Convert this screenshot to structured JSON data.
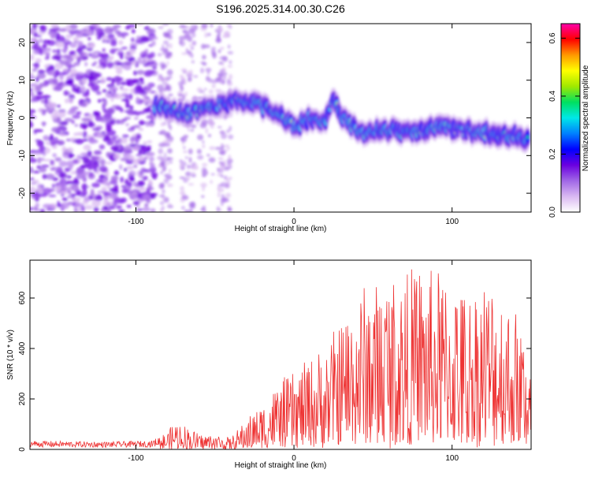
{
  "title": "S196.2025.314.00.30.C26",
  "chart_data": [
    {
      "type": "heatmap",
      "title": "",
      "xlabel": "Height of straight line (km)",
      "ylabel": "Frequency (Hz)",
      "xlim": [
        -167,
        150
      ],
      "ylim": [
        -25,
        25
      ],
      "xticks": [
        -100,
        0,
        100
      ],
      "yticks": [
        -20,
        -10,
        0,
        10,
        20
      ],
      "grid": false,
      "colorbar": {
        "label": "Normalized spectral amplitude",
        "range": [
          0.0,
          0.65
        ],
        "ticks": [
          0.0,
          0.2,
          0.4,
          0.6
        ],
        "colors": [
          "#ffffff",
          "#d9b8f2",
          "#a066e6",
          "#6a00e0",
          "#0000ff",
          "#0080ff",
          "#00e8e8",
          "#00e060",
          "#a0e800",
          "#ffff00",
          "#ff9900",
          "#ff0000",
          "#ff00aa"
        ]
      },
      "signal_trace": {
        "x": [
          -88,
          -80,
          -70,
          -60,
          -50,
          -40,
          -30,
          -20,
          -10,
          0,
          10,
          20,
          25,
          30,
          40,
          50,
          60,
          70,
          80,
          90,
          100,
          110,
          120,
          130,
          140,
          148
        ],
        "y": [
          3.5,
          2.5,
          1.0,
          2.0,
          3.0,
          4.5,
          4.5,
          3.0,
          1.0,
          -2.5,
          0.0,
          -1.0,
          5.0,
          0.5,
          -3.5,
          -4.0,
          -3.0,
          -4.0,
          -3.5,
          -2.5,
          -3.0,
          -3.5,
          -4.0,
          -4.5,
          -5.0,
          -6.0
        ]
      },
      "noise_region_km": [
        -167,
        -88
      ]
    },
    {
      "type": "line",
      "title": "",
      "xlabel": "Height of straight line (km)",
      "ylabel": "SNR (10 * v/v)",
      "xlim": [
        -167,
        150
      ],
      "ylim": [
        0,
        750
      ],
      "xticks": [
        -100,
        0,
        100
      ],
      "yticks": [
        0,
        200,
        400,
        600
      ],
      "grid": false,
      "color": "#ee3333",
      "envelope": {
        "x": [
          -167,
          -120,
          -90,
          -80,
          -75,
          -70,
          -60,
          -50,
          -40,
          -30,
          -20,
          -10,
          0,
          10,
          20,
          30,
          40,
          50,
          60,
          70,
          80,
          90,
          100,
          110,
          120,
          130,
          140,
          150
        ],
        "y": [
          35,
          30,
          35,
          70,
          110,
          100,
          60,
          60,
          45,
          120,
          180,
          260,
          300,
          360,
          400,
          520,
          620,
          660,
          700,
          680,
          720,
          700,
          660,
          620,
          680,
          640,
          560,
          400
        ]
      }
    }
  ]
}
